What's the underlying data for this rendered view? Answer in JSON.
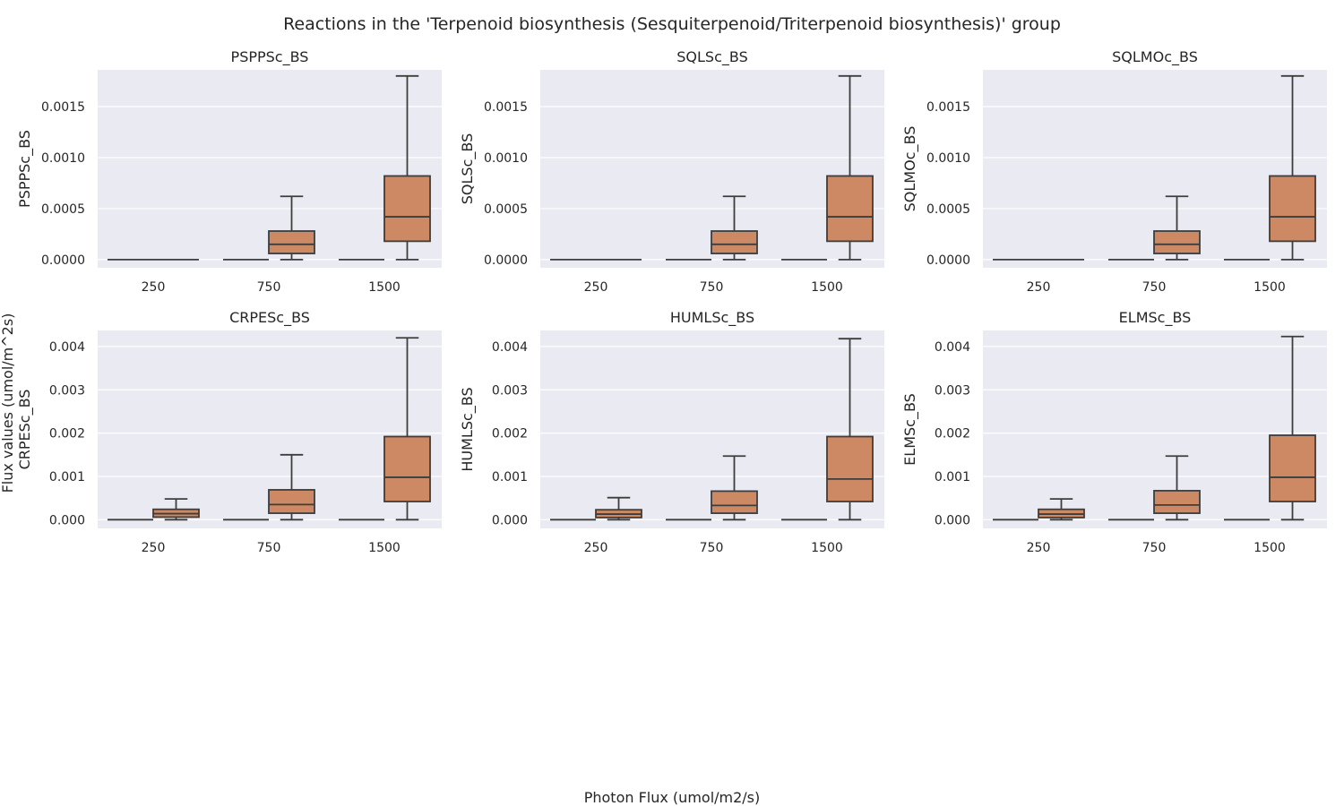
{
  "title": "Reactions in the 'Terpenoid biosynthesis (Sesquiterpenoid/Triterpenoid biosynthesis)' group",
  "xlabel": "Photon Flux (umol/m2/s)",
  "ylabel": "Flux values (umol/m^2s)",
  "colors": {
    "panel_bg": "#eaeaf2",
    "grid": "#ffffff",
    "box_fill": "#cc8963",
    "box_edge": "#3d3d3d"
  },
  "chart_data": [
    {
      "type": "box",
      "title": "PSPPSc_BS",
      "ylabel": "PSPPSc_BS",
      "categories": [
        "250",
        "750",
        "1500"
      ],
      "ylim": [
        -8e-05,
        0.00186
      ],
      "yticks": [
        "0.0000",
        "0.0005",
        "0.0010",
        "0.0015"
      ],
      "ytick_values": [
        0,
        0.0005,
        0.001,
        0.0015
      ],
      "boxes": [
        {
          "category": "250",
          "slot": 0,
          "min": 0,
          "q1": 0,
          "median": 0,
          "q3": 0,
          "max": 0
        },
        {
          "category": "250",
          "slot": 1,
          "min": 0,
          "q1": 0,
          "median": 0,
          "q3": 0,
          "max": 0
        },
        {
          "category": "750",
          "slot": 0,
          "min": 0,
          "q1": 0,
          "median": 0,
          "q3": 0,
          "max": 0
        },
        {
          "category": "750",
          "slot": 1,
          "min": 0,
          "q1": 6e-05,
          "median": 0.00015,
          "q3": 0.00028,
          "max": 0.00062
        },
        {
          "category": "1500",
          "slot": 0,
          "min": 0,
          "q1": 0,
          "median": 0,
          "q3": 0,
          "max": 0
        },
        {
          "category": "1500",
          "slot": 1,
          "min": 0,
          "q1": 0.00018,
          "median": 0.00042,
          "q3": 0.00082,
          "max": 0.0018
        }
      ]
    },
    {
      "type": "box",
      "title": "SQLSc_BS",
      "ylabel": "SQLSc_BS",
      "categories": [
        "250",
        "750",
        "1500"
      ],
      "ylim": [
        -8e-05,
        0.00186
      ],
      "yticks": [
        "0.0000",
        "0.0005",
        "0.0010",
        "0.0015"
      ],
      "ytick_values": [
        0,
        0.0005,
        0.001,
        0.0015
      ],
      "boxes": [
        {
          "category": "250",
          "slot": 0,
          "min": 0,
          "q1": 0,
          "median": 0,
          "q3": 0,
          "max": 0
        },
        {
          "category": "250",
          "slot": 1,
          "min": 0,
          "q1": 0,
          "median": 0,
          "q3": 0,
          "max": 0
        },
        {
          "category": "750",
          "slot": 0,
          "min": 0,
          "q1": 0,
          "median": 0,
          "q3": 0,
          "max": 0
        },
        {
          "category": "750",
          "slot": 1,
          "min": 0,
          "q1": 6e-05,
          "median": 0.00015,
          "q3": 0.00028,
          "max": 0.00062
        },
        {
          "category": "1500",
          "slot": 0,
          "min": 0,
          "q1": 0,
          "median": 0,
          "q3": 0,
          "max": 0
        },
        {
          "category": "1500",
          "slot": 1,
          "min": 0,
          "q1": 0.00018,
          "median": 0.00042,
          "q3": 0.00082,
          "max": 0.0018
        }
      ]
    },
    {
      "type": "box",
      "title": "SQLMOc_BS",
      "ylabel": "SQLMOc_BS",
      "categories": [
        "250",
        "750",
        "1500"
      ],
      "ylim": [
        -8e-05,
        0.00186
      ],
      "yticks": [
        "0.0000",
        "0.0005",
        "0.0010",
        "0.0015"
      ],
      "ytick_values": [
        0,
        0.0005,
        0.001,
        0.0015
      ],
      "boxes": [
        {
          "category": "250",
          "slot": 0,
          "min": 0,
          "q1": 0,
          "median": 0,
          "q3": 0,
          "max": 0
        },
        {
          "category": "250",
          "slot": 1,
          "min": 0,
          "q1": 0,
          "median": 0,
          "q3": 0,
          "max": 0
        },
        {
          "category": "750",
          "slot": 0,
          "min": 0,
          "q1": 0,
          "median": 0,
          "q3": 0,
          "max": 0
        },
        {
          "category": "750",
          "slot": 1,
          "min": 0,
          "q1": 6e-05,
          "median": 0.00015,
          "q3": 0.00028,
          "max": 0.00062
        },
        {
          "category": "1500",
          "slot": 0,
          "min": 0,
          "q1": 0,
          "median": 0,
          "q3": 0,
          "max": 0
        },
        {
          "category": "1500",
          "slot": 1,
          "min": 0,
          "q1": 0.00018,
          "median": 0.00042,
          "q3": 0.00082,
          "max": 0.0018
        }
      ]
    },
    {
      "type": "box",
      "title": "CRPESc_BS",
      "ylabel": "CRPESc_BS",
      "categories": [
        "250",
        "750",
        "1500"
      ],
      "ylim": [
        -0.0002,
        0.00437
      ],
      "yticks": [
        "0.000",
        "0.001",
        "0.002",
        "0.003",
        "0.004"
      ],
      "ytick_values": [
        0,
        0.001,
        0.002,
        0.003,
        0.004
      ],
      "boxes": [
        {
          "category": "250",
          "slot": 0,
          "min": 0,
          "q1": 0,
          "median": 0,
          "q3": 0,
          "max": 0
        },
        {
          "category": "250",
          "slot": 1,
          "min": 0,
          "q1": 6e-05,
          "median": 0.00014,
          "q3": 0.00024,
          "max": 0.00048
        },
        {
          "category": "750",
          "slot": 0,
          "min": 0,
          "q1": 0,
          "median": 0,
          "q3": 0,
          "max": 0
        },
        {
          "category": "750",
          "slot": 1,
          "min": 0,
          "q1": 0.00015,
          "median": 0.00035,
          "q3": 0.00069,
          "max": 0.0015
        },
        {
          "category": "1500",
          "slot": 0,
          "min": 0,
          "q1": 0,
          "median": 0,
          "q3": 0,
          "max": 0
        },
        {
          "category": "1500",
          "slot": 1,
          "min": 0,
          "q1": 0.00042,
          "median": 0.00098,
          "q3": 0.00192,
          "max": 0.0042
        }
      ]
    },
    {
      "type": "box",
      "title": "HUMLSc_BS",
      "ylabel": "HUMLSc_BS",
      "categories": [
        "250",
        "750",
        "1500"
      ],
      "ylim": [
        -0.0002,
        0.00437
      ],
      "yticks": [
        "0.000",
        "0.001",
        "0.002",
        "0.003",
        "0.004"
      ],
      "ytick_values": [
        0,
        0.001,
        0.002,
        0.003,
        0.004
      ],
      "boxes": [
        {
          "category": "250",
          "slot": 0,
          "min": 0,
          "q1": 0,
          "median": 0,
          "q3": 0,
          "max": 0
        },
        {
          "category": "250",
          "slot": 1,
          "min": 0,
          "q1": 5e-05,
          "median": 0.00013,
          "q3": 0.00023,
          "max": 0.00051
        },
        {
          "category": "750",
          "slot": 0,
          "min": 0,
          "q1": 0,
          "median": 0,
          "q3": 0,
          "max": 0
        },
        {
          "category": "750",
          "slot": 1,
          "min": 0,
          "q1": 0.00015,
          "median": 0.00033,
          "q3": 0.00066,
          "max": 0.00147
        },
        {
          "category": "1500",
          "slot": 0,
          "min": 0,
          "q1": 0,
          "median": 0,
          "q3": 0,
          "max": 0
        },
        {
          "category": "1500",
          "slot": 1,
          "min": 0,
          "q1": 0.00042,
          "median": 0.00094,
          "q3": 0.00192,
          "max": 0.00418
        }
      ]
    },
    {
      "type": "box",
      "title": "ELMSc_BS",
      "ylabel": "ELMSc_BS",
      "categories": [
        "250",
        "750",
        "1500"
      ],
      "ylim": [
        -0.0002,
        0.00437
      ],
      "yticks": [
        "0.000",
        "0.001",
        "0.002",
        "0.003",
        "0.004"
      ],
      "ytick_values": [
        0,
        0.001,
        0.002,
        0.003,
        0.004
      ],
      "boxes": [
        {
          "category": "250",
          "slot": 0,
          "min": 0,
          "q1": 0,
          "median": 0,
          "q3": 0,
          "max": 0
        },
        {
          "category": "250",
          "slot": 1,
          "min": 0,
          "q1": 5e-05,
          "median": 0.00013,
          "q3": 0.00024,
          "max": 0.00048
        },
        {
          "category": "750",
          "slot": 0,
          "min": 0,
          "q1": 0,
          "median": 0,
          "q3": 0,
          "max": 0
        },
        {
          "category": "750",
          "slot": 1,
          "min": 0,
          "q1": 0.00015,
          "median": 0.00034,
          "q3": 0.00067,
          "max": 0.00147
        },
        {
          "category": "1500",
          "slot": 0,
          "min": 0,
          "q1": 0,
          "median": 0,
          "q3": 0,
          "max": 0
        },
        {
          "category": "1500",
          "slot": 1,
          "min": 0,
          "q1": 0.00042,
          "median": 0.00098,
          "q3": 0.00195,
          "max": 0.00423
        }
      ]
    }
  ]
}
